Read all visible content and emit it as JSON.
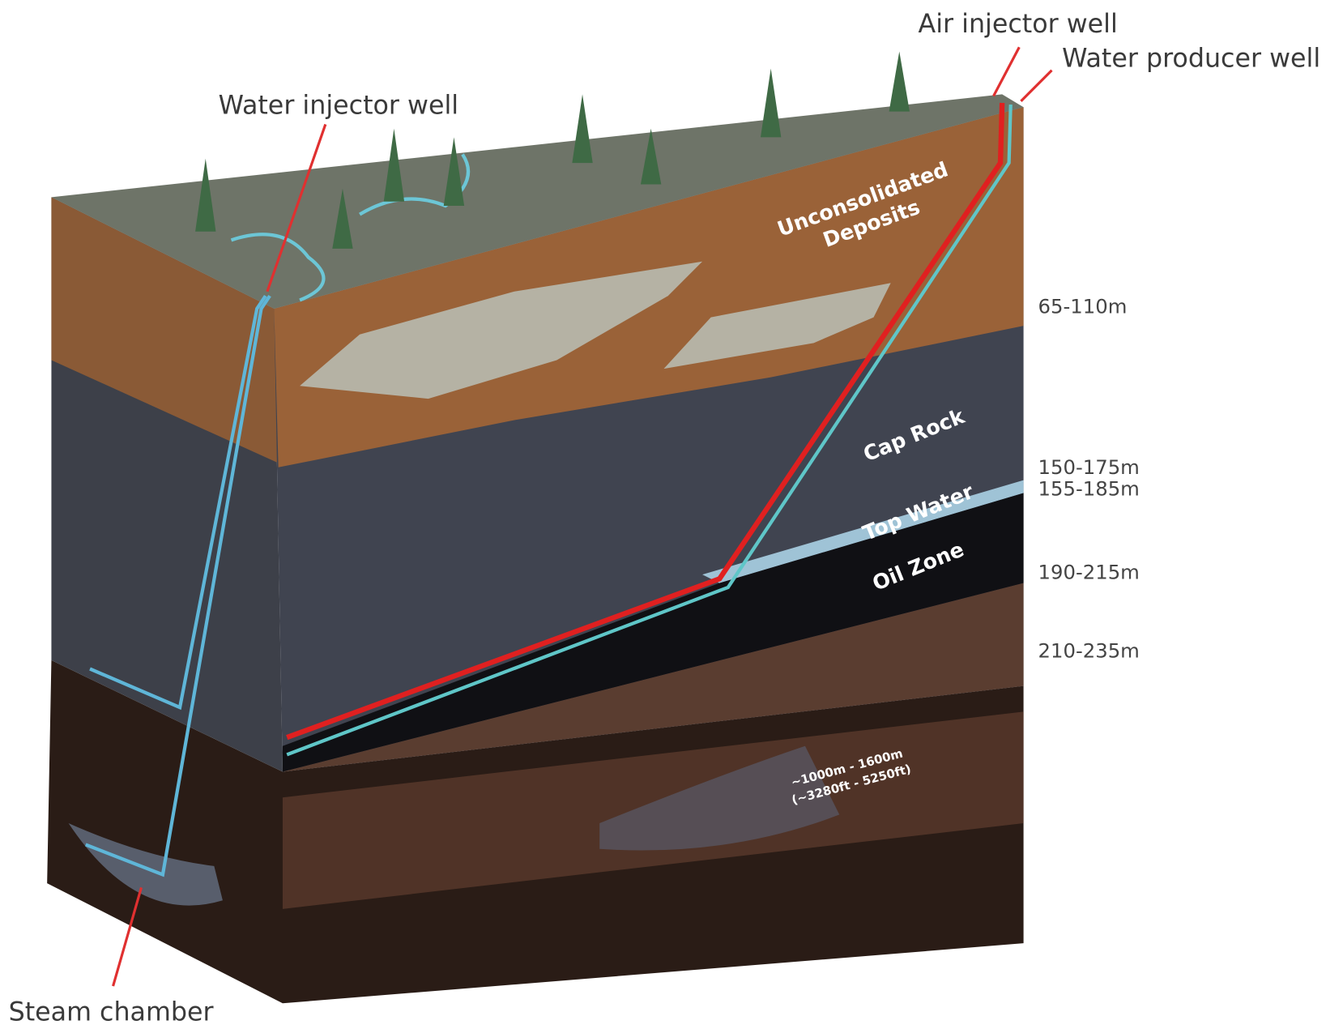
{
  "callouts": {
    "water_injector": "Water injector well",
    "air_injector": "Air injector well",
    "water_producer": "Water producer well",
    "steam_chamber": "Steam chamber"
  },
  "layers": {
    "unconsolidated": [
      "Unconsolidated",
      "Deposits"
    ],
    "cap_rock": "Cap Rock",
    "top_water": "Top Water",
    "oil_zone": "Oil Zone"
  },
  "depths": [
    "65-110m",
    "150-175m",
    "155-185m",
    "190-215m",
    "210-235m"
  ],
  "deep_range": [
    "~1000m - 1600m",
    "(~3280ft - 5250ft)"
  ]
}
